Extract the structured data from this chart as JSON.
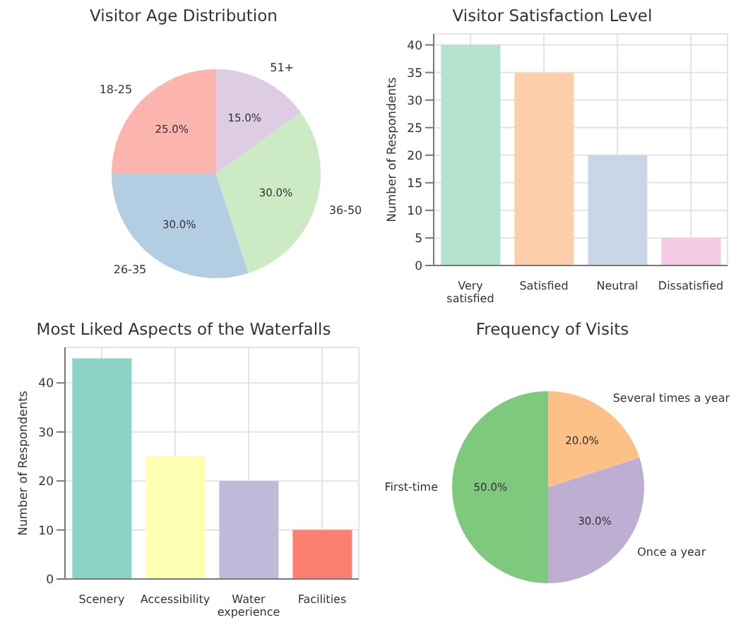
{
  "chart_data": [
    {
      "type": "pie",
      "title": "Visitor Age Distribution",
      "categories": [
        "18-25",
        "26-35",
        "36-50",
        "51+"
      ],
      "values": [
        25,
        30,
        30,
        15
      ],
      "colors": [
        "#fbb4ae",
        "#b3cde3",
        "#ccebc5",
        "#decbe4"
      ],
      "value_labels": [
        "25.0%",
        "30.0%",
        "30.0%",
        "15.0%"
      ]
    },
    {
      "type": "bar",
      "title": "Visitor Satisfaction Level",
      "ylabel": "Number of Respondents",
      "categories": [
        "Very satisfied",
        "Satisfied",
        "Neutral",
        "Dissatisfied"
      ],
      "values": [
        40,
        35,
        20,
        5
      ],
      "colors": [
        "#b3e2cd",
        "#fdcdac",
        "#cbd5e8",
        "#f4cae4"
      ],
      "ylim": [
        0,
        42
      ],
      "yticks": [
        0,
        5,
        10,
        15,
        20,
        25,
        30,
        35,
        40
      ],
      "grid": true
    },
    {
      "type": "bar",
      "title": "Most Liked Aspects of the Waterfalls",
      "ylabel": "Number of Respondents",
      "categories": [
        "Scenery",
        "Accessibility",
        "Water experience",
        "Facilities"
      ],
      "values": [
        45,
        25,
        20,
        10
      ],
      "colors": [
        "#8dd3c7",
        "#ffffb3",
        "#bebada",
        "#fb8072"
      ],
      "ylim": [
        0,
        47.25
      ],
      "yticks": [
        0,
        10,
        20,
        30,
        40
      ],
      "grid": true
    },
    {
      "type": "pie",
      "title": "Frequency of Visits",
      "categories": [
        "First-time",
        "Once a year",
        "Several times a year"
      ],
      "values": [
        50,
        30,
        20
      ],
      "colors": [
        "#7fc97f",
        "#beaed4",
        "#fdc086"
      ],
      "value_labels": [
        "50.0%",
        "30.0%",
        "20.0%"
      ]
    }
  ]
}
